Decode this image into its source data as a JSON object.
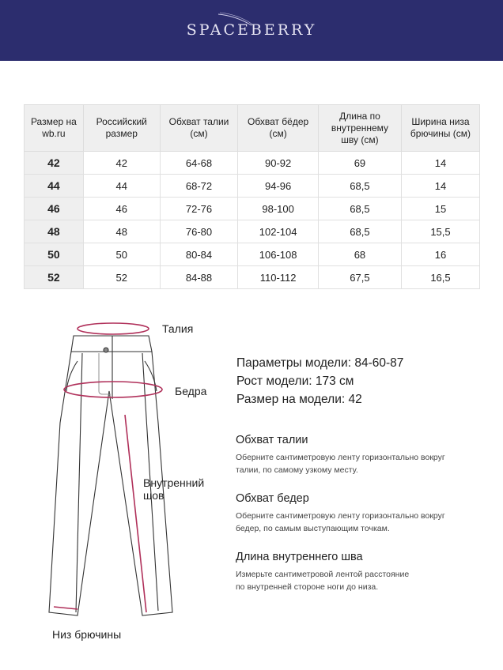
{
  "header": {
    "brand": "SPACEBERRY",
    "bg_color": "#2c2d6e"
  },
  "table": {
    "headers": [
      "Размер на wb.ru",
      "Российский размер",
      "Обхват талии (см)",
      "Обхват бёдер (см)",
      "Длина по внутреннему шву (см)",
      "Ширина низа брючины (см)"
    ],
    "rows": [
      [
        "42",
        "42",
        "64-68",
        "90-92",
        "69",
        "14"
      ],
      [
        "44",
        "44",
        "68-72",
        "94-96",
        "68,5",
        "14"
      ],
      [
        "46",
        "46",
        "72-76",
        "98-100",
        "68,5",
        "15"
      ],
      [
        "48",
        "48",
        "76-80",
        "102-104",
        "68,5",
        "15,5"
      ],
      [
        "50",
        "50",
        "80-84",
        "106-108",
        "68",
        "16"
      ],
      [
        "52",
        "52",
        "84-88",
        "110-112",
        "67,5",
        "16,5"
      ]
    ]
  },
  "diagram": {
    "waist": "Талия",
    "hips": "Бедра",
    "inseam_line1": "Внутренний",
    "inseam_line2": "шов",
    "hem": "Низ брючины",
    "accent_color": "#b0305a"
  },
  "model": {
    "params_label": "Параметры модели:",
    "params_value": "84-60-87",
    "height_label": "Рост модели:",
    "height_value": "173 см",
    "size_label": "Размер на модели:",
    "size_value": "42"
  },
  "instructions": [
    {
      "title": "Обхват талии",
      "line1": "Оберните сантиметровую ленту горизонтально вокруг",
      "line2": "талии, по самому узкому месту."
    },
    {
      "title": "Обхват бедер",
      "line1": "Оберните сантиметровую ленту горизонтально вокруг",
      "line2": "бедер, по самым выступающим точкам."
    },
    {
      "title": "Длина внутреннего шва",
      "line1": "Измерьте сантиметровой лентой расстояние",
      "line2": "по внутренней стороне ноги до низа."
    }
  ]
}
